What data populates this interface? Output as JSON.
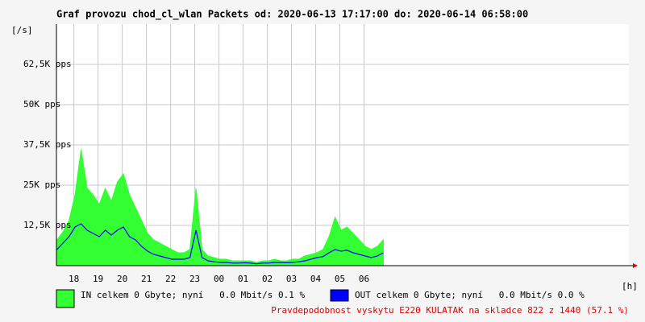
{
  "chart_data": {
    "type": "line",
    "title": "Graf provozu chod_cl_wlan Packets od: 2020-06-13 17:17:00 do: 2020-06-14 06:58:00",
    "y_label": "[/s]",
    "x_label": "[h]",
    "xlim": [
      17.28,
      40.95
    ],
    "ylim": [
      0,
      75000
    ],
    "xticks": [
      18,
      19,
      20,
      21,
      22,
      23,
      {
        "value": 24,
        "label": "00"
      },
      {
        "value": 25,
        "label": "01"
      },
      {
        "value": 26,
        "label": "02"
      },
      {
        "value": 27,
        "label": "03"
      },
      {
        "value": 28,
        "label": "04"
      },
      {
        "value": 29,
        "label": "05"
      },
      {
        "value": 30,
        "label": "06"
      }
    ],
    "yticks": [
      {
        "value": 12500,
        "label": "12,5K pps"
      },
      {
        "value": 25000,
        "label": "25K pps"
      },
      {
        "value": 37500,
        "label": "37,5K pps"
      },
      {
        "value": 50000,
        "label": "50K pps"
      },
      {
        "value": 62500,
        "label": "62,5K pps"
      }
    ],
    "grid": true,
    "x": [
      17.3,
      17.55,
      17.8,
      18.05,
      18.3,
      18.55,
      18.8,
      19.05,
      19.3,
      19.55,
      19.8,
      20.05,
      20.3,
      20.55,
      20.8,
      21.05,
      21.3,
      21.55,
      21.8,
      22.05,
      22.3,
      22.55,
      22.8,
      23.05,
      23.3,
      23.55,
      23.8,
      24.05,
      24.3,
      24.55,
      24.8,
      25.05,
      25.3,
      25.55,
      25.8,
      26.05,
      26.3,
      26.55,
      26.8,
      27.05,
      27.3,
      27.55,
      27.8,
      28.05,
      28.3,
      28.55,
      28.8,
      29.05,
      29.3,
      29.55,
      29.8,
      30.05,
      30.3,
      30.55,
      30.8
    ],
    "series": [
      {
        "name": "IN celkem 0 Gbyte; nyní   0.0 Mbit/s 0.1 %",
        "color": "#33ff33",
        "fill": true,
        "values": [
          8000,
          10500,
          14000,
          22000,
          36000,
          24000,
          22000,
          19000,
          24000,
          20000,
          26000,
          28500,
          22000,
          18000,
          14000,
          10000,
          8000,
          7000,
          6000,
          5000,
          4000,
          4000,
          5000,
          24000,
          5000,
          3000,
          2500,
          2000,
          2000,
          1500,
          1500,
          1500,
          1500,
          1000,
          1500,
          1500,
          2000,
          1500,
          1500,
          2000,
          2000,
          3000,
          3500,
          4000,
          5000,
          9000,
          15000,
          11000,
          12000,
          10000,
          8000,
          6000,
          5000,
          6000,
          8000
        ]
      },
      {
        "name": "OUT celkem 0 Gbyte; nyní   0.0 Mbit/s 0.0 %",
        "color": "#0000ff",
        "fill": false,
        "values": [
          5000,
          7000,
          9000,
          12000,
          13000,
          11000,
          10000,
          9000,
          11000,
          9500,
          11000,
          12000,
          9000,
          8000,
          6000,
          4500,
          3500,
          3000,
          2500,
          2000,
          2000,
          2000,
          2500,
          11000,
          2500,
          1500,
          1200,
          1000,
          1000,
          800,
          800,
          900,
          800,
          600,
          800,
          800,
          1000,
          1000,
          900,
          1000,
          1200,
          1500,
          2000,
          2500,
          2800,
          4000,
          5000,
          4500,
          4800,
          4000,
          3500,
          3000,
          2500,
          3000,
          4000
        ]
      }
    ],
    "note": "Pravdepodobnost vyskytu E220 KULATAK na skladce 822 z 1440 (57.1 %)"
  }
}
